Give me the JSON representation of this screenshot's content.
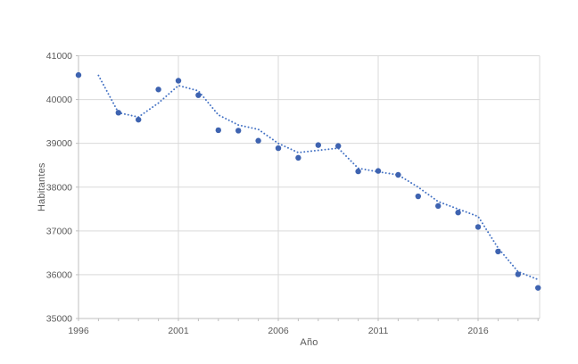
{
  "chart_data": {
    "type": "scatter",
    "title": "",
    "xlabel": "Año",
    "ylabel": "Habitantes",
    "xlim": [
      1996,
      2019
    ],
    "ylim": [
      35000,
      41000
    ],
    "x_ticks": [
      1996,
      2001,
      2006,
      2011,
      2016
    ],
    "y_ticks": [
      35000,
      36000,
      37000,
      38000,
      39000,
      40000,
      41000
    ],
    "grid": true,
    "legend": "none",
    "missing_x": [
      1997
    ],
    "colors": {
      "marker": "#3e63b0",
      "trendline": "#4472c4",
      "gridline": "#d9d9d9",
      "axis_line": "#bfbfbf",
      "tick_text": "#595959",
      "background": "#ffffff"
    },
    "series": [
      {
        "name": "habitantes-points",
        "style": "points",
        "x": [
          1996,
          1998,
          1999,
          2000,
          2001,
          2002,
          2003,
          2004,
          2005,
          2006,
          2007,
          2008,
          2009,
          2010,
          2011,
          2012,
          2013,
          2014,
          2015,
          2016,
          2017,
          2018,
          2019
        ],
        "y": [
          40560,
          39700,
          39540,
          40230,
          40430,
          40100,
          39300,
          39290,
          39060,
          38890,
          38670,
          38960,
          38940,
          38360,
          38370,
          38280,
          37790,
          37570,
          37420,
          37090,
          36530,
          36010,
          35700
        ]
      },
      {
        "name": "media-movil-trendline",
        "style": "dotted-line",
        "x": [
          1997,
          1998,
          1999,
          2000,
          2001,
          2002,
          2003,
          2004,
          2005,
          2006,
          2007,
          2008,
          2009,
          2010,
          2011,
          2012,
          2013,
          2014,
          2015,
          2016,
          2017,
          2018,
          2019
        ],
        "y": [
          40550,
          39700,
          39600,
          39920,
          40320,
          40200,
          39650,
          39420,
          39320,
          39000,
          38790,
          38840,
          38890,
          38430,
          38350,
          38280,
          38000,
          37670,
          37500,
          37330,
          36610,
          36070,
          35890
        ]
      }
    ]
  }
}
